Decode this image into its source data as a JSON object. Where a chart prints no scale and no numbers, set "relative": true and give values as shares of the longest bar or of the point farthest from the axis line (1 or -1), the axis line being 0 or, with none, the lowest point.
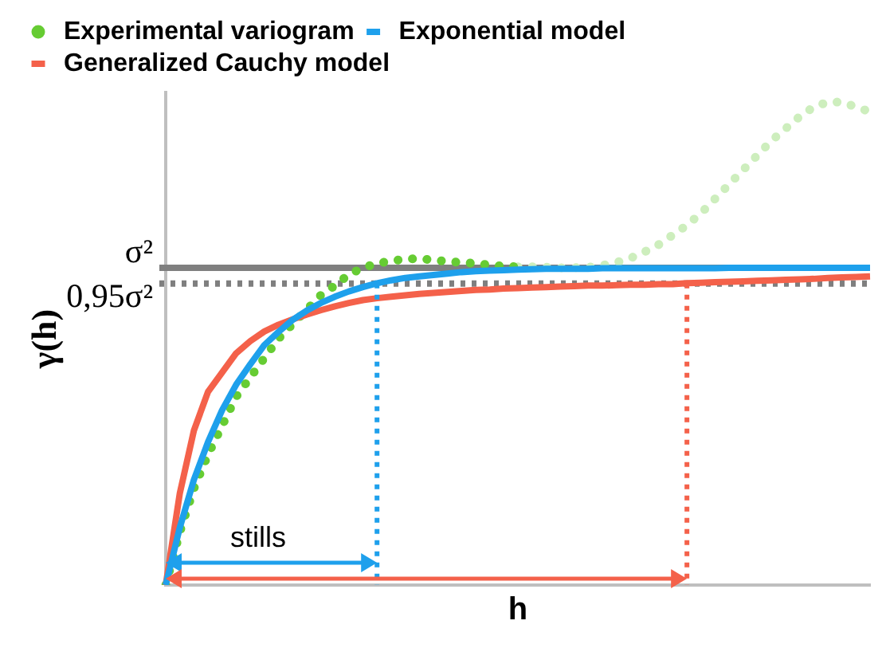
{
  "chart_data": {
    "type": "line",
    "relative": true,
    "xlabel": "h",
    "ylabel": "γ(h)",
    "legend": "top left",
    "grid": false,
    "tick_labels": false,
    "categories": [
      null,
      null,
      null,
      null,
      null,
      null,
      null,
      null,
      null,
      null,
      null,
      null,
      null,
      null,
      null,
      null,
      null,
      null,
      null,
      null,
      null,
      null,
      null,
      null,
      null,
      null,
      null,
      null,
      null,
      null,
      null,
      null,
      null,
      null,
      null,
      null,
      null,
      null,
      null,
      null,
      null,
      null,
      null,
      null,
      null,
      null,
      null,
      null,
      null,
      null,
      null
    ],
    "series": [
      {
        "name": "Experimental variogram",
        "type": "line",
        "line_style": "dotted",
        "color": "#66cc33",
        "values": [
          0,
          0.11,
          0.2,
          0.27,
          0.33,
          0.39,
          0.43,
          0.47,
          0.51,
          0.54,
          0.57,
          0.6,
          0.62,
          0.643,
          0.657,
          0.666,
          0.671,
          0.675,
          0.676,
          0.673,
          0.67,
          0.668,
          0.666,
          0.663,
          0.66,
          0.659,
          null,
          null,
          null,
          null,
          null,
          null,
          null,
          null,
          null,
          null,
          null,
          null,
          null,
          null,
          null,
          null,
          null,
          null,
          null,
          null,
          null,
          null,
          null,
          null,
          null
        ]
      },
      {
        "name": "Exponential model",
        "type": "line",
        "line_style": "solid",
        "color": "#1ea0ec",
        "values": [
          0,
          0.119,
          0.218,
          0.296,
          0.362,
          0.415,
          0.457,
          0.497,
          0.524,
          0.549,
          0.568,
          0.584,
          0.597,
          0.608,
          0.617,
          0.625,
          0.631,
          0.636,
          0.639,
          0.642,
          0.645,
          0.648,
          0.65,
          0.651,
          0.652,
          0.653,
          0.654,
          0.655,
          0.655,
          0.655,
          0.655,
          0.656,
          0.656,
          0.656,
          0.656,
          0.656,
          0.656,
          0.656,
          0.656,
          0.656,
          0.657,
          0.657,
          0.657,
          0.657,
          0.657,
          0.657,
          0.657,
          0.657,
          0.657,
          0.657,
          0.657
        ]
      },
      {
        "name": "Generalized Cauchy model",
        "type": "line",
        "line_style": "solid",
        "color": "#f4614a",
        "values": [
          0,
          0.19,
          0.32,
          0.4,
          0.44,
          0.48,
          0.505,
          0.525,
          0.539,
          0.55,
          0.56,
          0.569,
          0.577,
          0.584,
          0.59,
          0.594,
          0.597,
          0.6,
          0.603,
          0.605,
          0.607,
          0.609,
          0.611,
          0.612,
          0.614,
          0.615,
          0.616,
          0.617,
          0.618,
          0.619,
          0.62,
          0.62,
          0.621,
          0.622,
          0.622,
          0.623,
          0.623,
          0.625,
          0.626,
          0.627,
          0.628,
          0.629,
          0.63,
          0.631,
          0.632,
          0.633,
          0.634,
          0.636,
          0.637,
          0.638,
          0.639
        ]
      },
      {
        "type": "line",
        "line_style": "dotted",
        "color": "#cdeebd",
        "values": [
          null,
          null,
          null,
          null,
          null,
          null,
          null,
          null,
          null,
          null,
          null,
          null,
          null,
          null,
          null,
          null,
          null,
          null,
          null,
          null,
          null,
          null,
          null,
          null,
          null,
          0.659,
          0.659,
          0.658,
          0.657,
          0.657,
          0.658,
          0.662,
          0.668,
          0.677,
          0.69,
          0.705,
          0.725,
          0.745,
          0.77,
          0.8,
          0.83,
          0.86,
          0.89,
          0.92,
          0.945,
          0.97,
          0.99,
          1,
          1,
          0.99,
          0.98
        ]
      }
    ],
    "ref_lines": [
      {
        "axis": "y",
        "value": 0.657,
        "label": "σ²",
        "color": "#7f7f7f",
        "line_style": "solid"
      },
      {
        "axis": "y",
        "value": 0.62415,
        "label": "0,95σ²",
        "color": "#7f7f7f",
        "line_style": "dotted"
      }
    ],
    "annotations": [
      "stills"
    ]
  }
}
